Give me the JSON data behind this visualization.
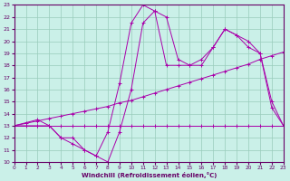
{
  "xlabel": "Windchill (Refroidissement éolien,°C)",
  "background_color": "#caf0e8",
  "grid_color": "#99ccbb",
  "line_color": "#aa00aa",
  "xlim": [
    0,
    23
  ],
  "ylim": [
    10,
    23
  ],
  "xticks": [
    0,
    1,
    2,
    3,
    4,
    5,
    6,
    7,
    8,
    9,
    10,
    11,
    12,
    13,
    14,
    15,
    16,
    17,
    18,
    19,
    20,
    21,
    22,
    23
  ],
  "yticks": [
    10,
    11,
    12,
    13,
    14,
    15,
    16,
    17,
    18,
    19,
    20,
    21,
    22,
    23
  ],
  "series1_x": [
    0,
    1,
    2,
    3,
    4,
    5,
    6,
    7,
    8,
    9,
    10,
    11,
    12,
    13,
    14,
    15,
    16,
    17,
    18,
    19,
    20,
    21,
    22,
    23
  ],
  "series1_y": [
    13,
    13,
    13,
    13,
    13,
    13,
    13,
    13,
    13,
    13,
    13,
    13,
    13,
    13,
    13,
    13,
    13,
    13,
    13,
    13,
    13,
    13,
    13,
    13
  ],
  "series2_x": [
    0,
    1,
    2,
    3,
    4,
    5,
    6,
    7,
    8,
    9,
    10,
    11,
    12,
    13,
    14,
    15,
    16,
    17,
    18,
    19,
    20,
    21,
    22,
    23
  ],
  "series2_y": [
    13.0,
    13.2,
    13.4,
    13.6,
    13.8,
    14.0,
    14.2,
    14.4,
    14.6,
    14.9,
    15.1,
    15.4,
    15.7,
    16.0,
    16.3,
    16.6,
    16.9,
    17.2,
    17.5,
    17.8,
    18.1,
    18.5,
    18.8,
    19.1
  ],
  "series3_x": [
    0,
    2,
    3,
    4,
    5,
    6,
    7,
    8,
    9,
    10,
    11,
    12,
    13,
    14,
    15,
    16,
    17,
    18,
    19,
    20,
    21,
    22,
    23
  ],
  "series3_y": [
    13.0,
    13.5,
    13.0,
    12.0,
    11.5,
    11.0,
    10.5,
    12.5,
    16.5,
    21.5,
    23.0,
    22.5,
    18.0,
    18.0,
    18.0,
    18.5,
    19.5,
    21.0,
    20.5,
    19.5,
    19.0,
    15.0,
    13.0
  ],
  "series4_x": [
    0,
    2,
    3,
    4,
    5,
    6,
    7,
    8,
    9,
    10,
    11,
    12,
    13,
    14,
    15,
    16,
    17,
    18,
    19,
    20,
    21,
    22,
    23
  ],
  "series4_y": [
    13.0,
    13.0,
    13.0,
    12.0,
    12.0,
    11.0,
    10.5,
    10.0,
    12.5,
    16.0,
    21.5,
    22.5,
    22.0,
    18.5,
    18.0,
    18.0,
    19.5,
    21.0,
    20.5,
    20.0,
    19.0,
    14.5,
    13.0
  ]
}
